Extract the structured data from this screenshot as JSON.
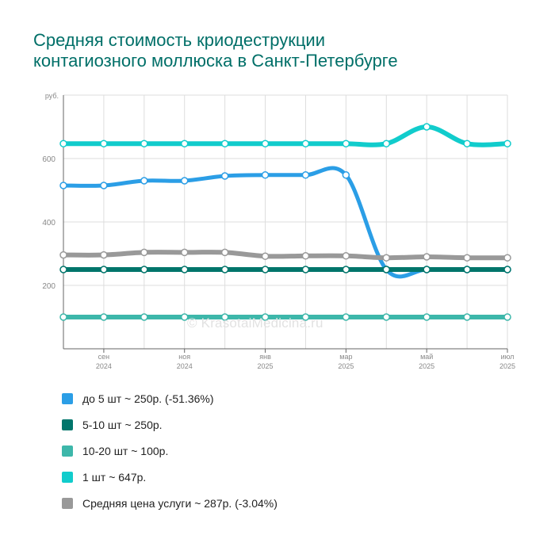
{
  "title_line1": "Средняя стоимость криодеструкции",
  "title_line2": "контагиозного моллюска в Санкт-Петербурге",
  "watermark": "© KrasotaiMedicina.ru",
  "colors": {
    "grid": "#dddddd",
    "axis": "#666666",
    "tick_text": "#888888"
  },
  "legend": [
    {
      "label": "до 5 шт ~ 250р. (-51.36%)",
      "color": "#2b9ee6"
    },
    {
      "label": "5-10 шт ~ 250р.",
      "color": "#00756b"
    },
    {
      "label": "10-20 шт ~ 100р.",
      "color": "#3db7aa"
    },
    {
      "label": "1 шт ~ 647р.",
      "color": "#11cccc"
    },
    {
      "label": "Средняя цена услуги ~ 287р. (-3.04%)",
      "color": "#999999"
    }
  ],
  "chart_data": {
    "type": "line",
    "title": "Средняя стоимость криодеструкции контагиозного моллюска в Санкт-Петербурге",
    "ylabel": "руб.",
    "ylim": [
      0,
      800
    ],
    "yticks": [
      200,
      400,
      600
    ],
    "x_points": 12,
    "x_tick_labels": [
      {
        "index": 1,
        "month": "сен",
        "year": "2024"
      },
      {
        "index": 3,
        "month": "ноя",
        "year": "2024"
      },
      {
        "index": 5,
        "month": "янв",
        "year": "2025"
      },
      {
        "index": 7,
        "month": "мар",
        "year": "2025"
      },
      {
        "index": 9,
        "month": "май",
        "year": "2025"
      },
      {
        "index": 11,
        "month": "июл",
        "year": "2025"
      }
    ],
    "grid": true,
    "series": [
      {
        "name": "1 шт",
        "color": "#11cccc",
        "width": 6,
        "values": [
          647,
          647,
          647,
          647,
          647,
          647,
          647,
          647,
          647,
          700,
          647,
          647
        ]
      },
      {
        "name": "до 5 шт",
        "color": "#2b9ee6",
        "width": 5,
        "values": [
          515,
          515,
          530,
          530,
          545,
          548,
          548,
          548,
          250,
          250,
          250,
          250
        ]
      },
      {
        "name": "Средняя цена услуги",
        "color": "#999999",
        "width": 6,
        "values": [
          296,
          296,
          304,
          304,
          304,
          292,
          293,
          293,
          287,
          290,
          287,
          287
        ]
      },
      {
        "name": "5-10 шт",
        "color": "#00756b",
        "width": 6,
        "values": [
          250,
          250,
          250,
          250,
          250,
          250,
          250,
          250,
          250,
          250,
          250,
          250
        ]
      },
      {
        "name": "10-20 шт",
        "color": "#3db7aa",
        "width": 6,
        "values": [
          100,
          100,
          100,
          100,
          100,
          100,
          100,
          100,
          100,
          100,
          100,
          100
        ]
      }
    ]
  }
}
